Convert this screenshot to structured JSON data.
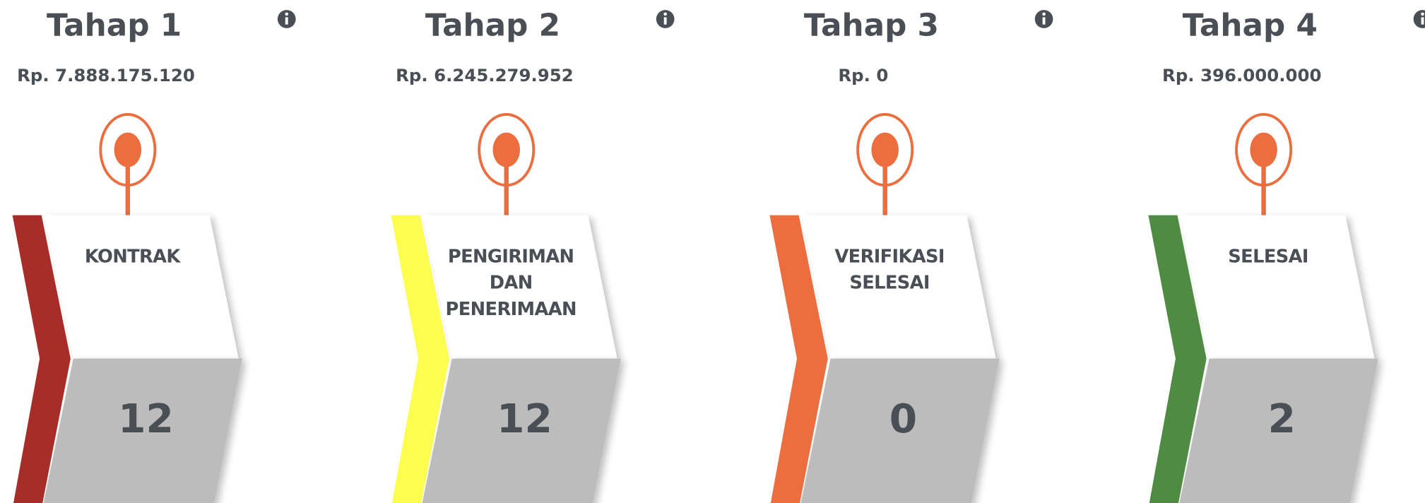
{
  "stages": [
    {
      "title": "Tahap 1",
      "amount": "Rp. 7.888.175.120",
      "label": "KONTRAK",
      "count": "12"
    },
    {
      "title": "Tahap 2",
      "amount": "Rp. 6.245.279.952",
      "label": "PENGIRIMAN DAN PENERIMAAN",
      "count": "12"
    },
    {
      "title": "Tahap 3",
      "amount": "Rp. 0",
      "label": "VERIFIKASI SELESAI",
      "count": "0"
    },
    {
      "title": "Tahap 4",
      "amount": "Rp. 396.000.000",
      "label": "SELESAI",
      "count": "2"
    }
  ]
}
